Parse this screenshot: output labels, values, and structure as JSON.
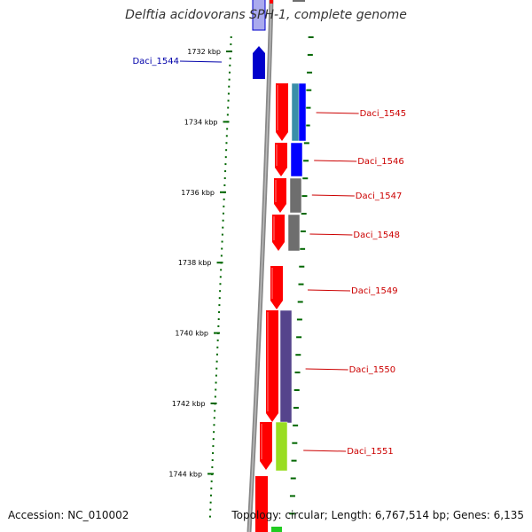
{
  "title": "Delftia acidovorans SPH-1, complete genome",
  "accession_text": "Accession: NC_010002",
  "topology_text": "Topology: circular; Length: 6,767,514 bp; Genes: 6,135",
  "ruler": {
    "unit": "kbp",
    "ticks": [
      {
        "kbp": 1732,
        "label": "1732 kbp"
      },
      {
        "kbp": 1734,
        "label": "1734 kbp"
      },
      {
        "kbp": 1736,
        "label": "1736 kbp"
      },
      {
        "kbp": 1738,
        "label": "1738 kbp"
      },
      {
        "kbp": 1740,
        "label": "1740 kbp"
      },
      {
        "kbp": 1742,
        "label": "1742 kbp"
      },
      {
        "kbp": 1744,
        "label": "1744 kbp"
      }
    ]
  },
  "genes": [
    {
      "label": "Daci_1544",
      "strand": "reverse",
      "color": "#0000cc"
    },
    {
      "label": "Daci_1545",
      "strand": "forward",
      "color": "#ff0000"
    },
    {
      "label": "Daci_1546",
      "strand": "forward",
      "color": "#ff0000"
    },
    {
      "label": "Daci_1547",
      "strand": "forward",
      "color": "#ff0000"
    },
    {
      "label": "Daci_1548",
      "strand": "forward",
      "color": "#ff0000"
    },
    {
      "label": "Daci_1549",
      "strand": "forward",
      "color": "#ff0000"
    },
    {
      "label": "Daci_1550",
      "strand": "forward",
      "color": "#ff0000"
    },
    {
      "label": "Daci_1551",
      "strand": "forward",
      "color": "#ff0000"
    }
  ],
  "colors": {
    "backbone": "#888888",
    "ticks": "#006600",
    "forward_gene": "#ff0000",
    "reverse_gene": "#0000cc",
    "label_forward": "#cc0000",
    "label_reverse": "#0000aa",
    "cog_blue": "#0000ff",
    "cog_teal": "#3a8fa8",
    "cog_gray": "#6e6e6e",
    "cog_purple": "#55448c",
    "cog_lime": "#99dd22"
  }
}
